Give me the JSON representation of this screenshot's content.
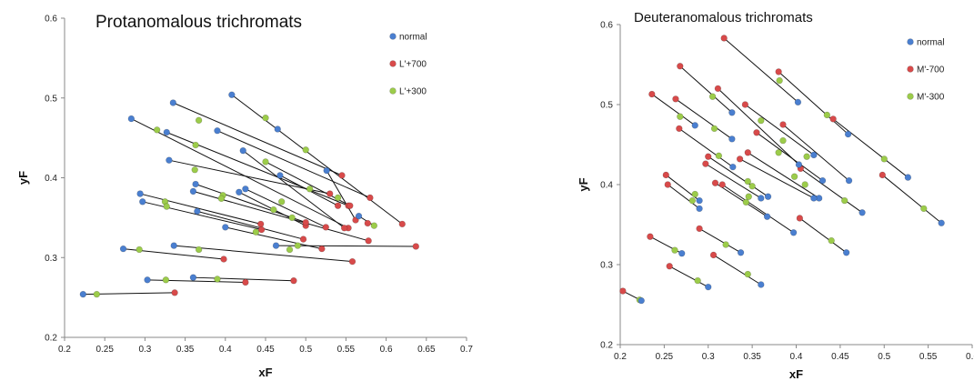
{
  "colors": {
    "normal": "#4a7fd0",
    "red": "#d84a4a",
    "green": "#9ccc4a"
  },
  "chart_data": [
    {
      "type": "scatter",
      "title": "Protanomalous trichromats",
      "xlabel": "xF",
      "ylabel": "yF",
      "xlim": [
        0.2,
        0.7
      ],
      "ylim": [
        0.2,
        0.6
      ],
      "xticks": [
        "0.2",
        "0.25",
        "0.3",
        "0.35",
        "0.4",
        "0.45",
        "0.5",
        "0.55",
        "0.6",
        "0.65",
        "0.7"
      ],
      "yticks": [
        "0.2",
        "0.3",
        "0.4",
        "0.5",
        "0.6"
      ],
      "legend_position": "top-right",
      "series": [
        {
          "name": "normal",
          "color_key": "normal"
        },
        {
          "name": "L'+700",
          "color_key": "red"
        },
        {
          "name": "L'+300",
          "color_key": "green"
        }
      ],
      "pairs": [
        {
          "normal": [
            0.408,
            0.504
          ],
          "red": [
            0.62,
            0.342
          ],
          "green": [
            0.45,
            0.475
          ]
        },
        {
          "normal": [
            0.335,
            0.494
          ],
          "red": [
            0.545,
            0.403
          ],
          "green": [
            0.367,
            0.472
          ]
        },
        {
          "normal": [
            0.283,
            0.474
          ],
          "red": [
            0.553,
            0.337
          ],
          "green": [
            0.315,
            0.46
          ]
        },
        {
          "normal": [
            0.327,
            0.457
          ],
          "red": [
            0.553,
            0.365
          ],
          "green": [
            0.363,
            0.441
          ]
        },
        {
          "normal": [
            0.39,
            0.459
          ],
          "red": [
            0.58,
            0.375
          ],
          "green": [
            0.5,
            0.435
          ]
        },
        {
          "normal": [
            0.465,
            0.461
          ],
          "red": [
            0.555,
            0.365
          ],
          "green": [
            0.45,
            0.42
          ]
        },
        {
          "normal": [
            0.422,
            0.434
          ],
          "red": [
            0.548,
            0.337
          ],
          "green": [
            0.47,
            0.37
          ]
        },
        {
          "normal": [
            0.33,
            0.422
          ],
          "red": [
            0.53,
            0.38
          ],
          "green": [
            0.362,
            0.41
          ]
        },
        {
          "normal": [
            0.566,
            0.352
          ],
          "red": [
            0.577,
            0.343
          ],
          "green": [
            0.585,
            0.34
          ]
        },
        {
          "normal": [
            0.526,
            0.409
          ],
          "red": [
            0.562,
            0.347
          ],
          "green": [
            0.54,
            0.375
          ]
        },
        {
          "normal": [
            0.468,
            0.403
          ],
          "red": [
            0.54,
            0.365
          ],
          "green": [
            0.505,
            0.386
          ]
        },
        {
          "normal": [
            0.425,
            0.386
          ],
          "red": [
            0.525,
            0.338
          ],
          "green": [
            0.483,
            0.35
          ]
        },
        {
          "normal": [
            0.417,
            0.382
          ],
          "red": [
            0.5,
            0.34
          ],
          "green": [
            0.46,
            0.36
          ]
        },
        {
          "normal": [
            0.363,
            0.392
          ],
          "red": [
            0.5,
            0.344
          ],
          "green": [
            0.397,
            0.378
          ]
        },
        {
          "normal": [
            0.36,
            0.383
          ],
          "red": [
            0.578,
            0.321
          ],
          "green": [
            0.395,
            0.374
          ]
        },
        {
          "normal": [
            0.294,
            0.38
          ],
          "red": [
            0.444,
            0.342
          ],
          "green": [
            0.325,
            0.37
          ]
        },
        {
          "normal": [
            0.297,
            0.37
          ],
          "red": [
            0.445,
            0.335
          ],
          "green": [
            0.327,
            0.364
          ]
        },
        {
          "normal": [
            0.365,
            0.358
          ],
          "red": [
            0.497,
            0.323
          ],
          "green": [
            0.438,
            0.332
          ]
        },
        {
          "normal": [
            0.4,
            0.338
          ],
          "red": [
            0.52,
            0.311
          ],
          "green": [
            0.48,
            0.31
          ]
        },
        {
          "normal": [
            0.463,
            0.315
          ],
          "red": [
            0.637,
            0.314
          ],
          "green": [
            0.49,
            0.315
          ]
        },
        {
          "normal": [
            0.336,
            0.315
          ],
          "red": [
            0.558,
            0.295
          ],
          "green": [
            0.367,
            0.31
          ]
        },
        {
          "normal": [
            0.273,
            0.311
          ],
          "red": [
            0.398,
            0.298
          ],
          "green": [
            0.293,
            0.31
          ]
        },
        {
          "normal": [
            0.303,
            0.272
          ],
          "red": [
            0.425,
            0.269
          ],
          "green": [
            0.326,
            0.272
          ]
        },
        {
          "normal": [
            0.36,
            0.275
          ],
          "red": [
            0.485,
            0.271
          ],
          "green": [
            0.39,
            0.273
          ]
        },
        {
          "normal": [
            0.223,
            0.254
          ],
          "red": [
            0.337,
            0.256
          ],
          "green": [
            0.24,
            0.254
          ]
        }
      ]
    },
    {
      "type": "scatter",
      "title": "Deuteranomalous trichromats",
      "xlabel": "xF",
      "ylabel": "yF",
      "xlim": [
        0.2,
        0.6
      ],
      "ylim": [
        0.2,
        0.6
      ],
      "xticks": [
        "0.2",
        "0.25",
        "0.3",
        "0.35",
        "0.4",
        "0.45",
        "0.5",
        "0.55",
        "0.6"
      ],
      "yticks": [
        "0.2",
        "0.3",
        "0.4",
        "0.5",
        "0.6"
      ],
      "legend_position": "top-right",
      "series": [
        {
          "name": "normal",
          "color_key": "normal"
        },
        {
          "name": "M'-700",
          "color_key": "red"
        },
        {
          "name": "M'-300",
          "color_key": "green"
        }
      ],
      "pairs": [
        {
          "normal": [
            0.402,
            0.503
          ],
          "red": [
            0.318,
            0.583
          ],
          "green": [
            0.381,
            0.53
          ]
        },
        {
          "normal": [
            0.459,
            0.463
          ],
          "red": [
            0.38,
            0.541
          ],
          "green": [
            0.435,
            0.487
          ]
        },
        {
          "normal": [
            0.327,
            0.49
          ],
          "red": [
            0.268,
            0.548
          ],
          "green": [
            0.305,
            0.51
          ]
        },
        {
          "normal": [
            0.285,
            0.474
          ],
          "red": [
            0.236,
            0.513
          ],
          "green": [
            0.268,
            0.485
          ]
        },
        {
          "normal": [
            0.327,
            0.457
          ],
          "red": [
            0.263,
            0.507
          ],
          "green": [
            0.307,
            0.47
          ]
        },
        {
          "normal": [
            0.42,
            0.437
          ],
          "red": [
            0.342,
            0.5
          ],
          "green": [
            0.36,
            0.48
          ]
        },
        {
          "normal": [
            0.403,
            0.425
          ],
          "red": [
            0.311,
            0.52
          ],
          "green": [
            0.385,
            0.455
          ]
        },
        {
          "normal": [
            0.527,
            0.409
          ],
          "red": [
            0.442,
            0.482
          ],
          "green": [
            0.5,
            0.432
          ]
        },
        {
          "normal": [
            0.46,
            0.405
          ],
          "red": [
            0.385,
            0.475
          ],
          "green": [
            0.412,
            0.435
          ]
        },
        {
          "normal": [
            0.43,
            0.405
          ],
          "red": [
            0.355,
            0.465
          ],
          "green": [
            0.38,
            0.44
          ]
        },
        {
          "normal": [
            0.475,
            0.365
          ],
          "red": [
            0.405,
            0.42
          ],
          "green": [
            0.455,
            0.38
          ]
        },
        {
          "normal": [
            0.328,
            0.422
          ],
          "red": [
            0.267,
            0.47
          ],
          "green": [
            0.312,
            0.436
          ]
        },
        {
          "normal": [
            0.426,
            0.383
          ],
          "red": [
            0.345,
            0.44
          ],
          "green": [
            0.41,
            0.4
          ]
        },
        {
          "normal": [
            0.42,
            0.383
          ],
          "red": [
            0.336,
            0.432
          ],
          "green": [
            0.398,
            0.41
          ]
        },
        {
          "normal": [
            0.36,
            0.383
          ],
          "red": [
            0.297,
            0.426
          ],
          "green": [
            0.35,
            0.398
          ]
        },
        {
          "normal": [
            0.368,
            0.385
          ],
          "red": [
            0.3,
            0.435
          ],
          "green": [
            0.345,
            0.404
          ]
        },
        {
          "normal": [
            0.565,
            0.352
          ],
          "red": [
            0.498,
            0.412
          ],
          "green": [
            0.545,
            0.37
          ]
        },
        {
          "normal": [
            0.397,
            0.34
          ],
          "red": [
            0.316,
            0.4
          ],
          "green": [
            0.343,
            0.378
          ]
        },
        {
          "normal": [
            0.367,
            0.36
          ],
          "red": [
            0.308,
            0.402
          ],
          "green": [
            0.346,
            0.385
          ]
        },
        {
          "normal": [
            0.29,
            0.38
          ],
          "red": [
            0.252,
            0.412
          ],
          "green": [
            0.285,
            0.388
          ]
        },
        {
          "normal": [
            0.29,
            0.37
          ],
          "red": [
            0.254,
            0.4
          ],
          "green": [
            0.282,
            0.38
          ]
        },
        {
          "normal": [
            0.457,
            0.315
          ],
          "red": [
            0.404,
            0.358
          ],
          "green": [
            0.44,
            0.33
          ]
        },
        {
          "normal": [
            0.337,
            0.315
          ],
          "red": [
            0.29,
            0.345
          ],
          "green": [
            0.32,
            0.325
          ]
        },
        {
          "normal": [
            0.27,
            0.314
          ],
          "red": [
            0.234,
            0.335
          ],
          "green": [
            0.262,
            0.318
          ]
        },
        {
          "normal": [
            0.36,
            0.275
          ],
          "red": [
            0.306,
            0.312
          ],
          "green": [
            0.345,
            0.288
          ]
        },
        {
          "normal": [
            0.3,
            0.272
          ],
          "red": [
            0.256,
            0.298
          ],
          "green": [
            0.288,
            0.28
          ]
        },
        {
          "normal": [
            0.224,
            0.255
          ],
          "red": [
            0.203,
            0.267
          ],
          "green": [
            0.222,
            0.256
          ]
        }
      ]
    }
  ]
}
